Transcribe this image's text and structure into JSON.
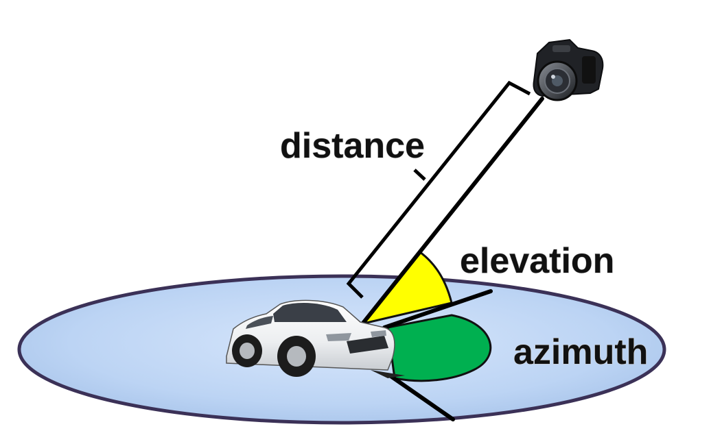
{
  "diagram": {
    "labels": {
      "distance": "distance",
      "elevation": "elevation",
      "azimuth": "azimuth"
    },
    "icons": {
      "camera": "camera-icon",
      "car": "car-icon"
    },
    "colors": {
      "ground_fill": "#b9d1f3",
      "ground_edge": "#3b3157",
      "elevation_fill": "#ffff00",
      "azimuth_fill": "#00b050",
      "lines": "#000000"
    }
  }
}
